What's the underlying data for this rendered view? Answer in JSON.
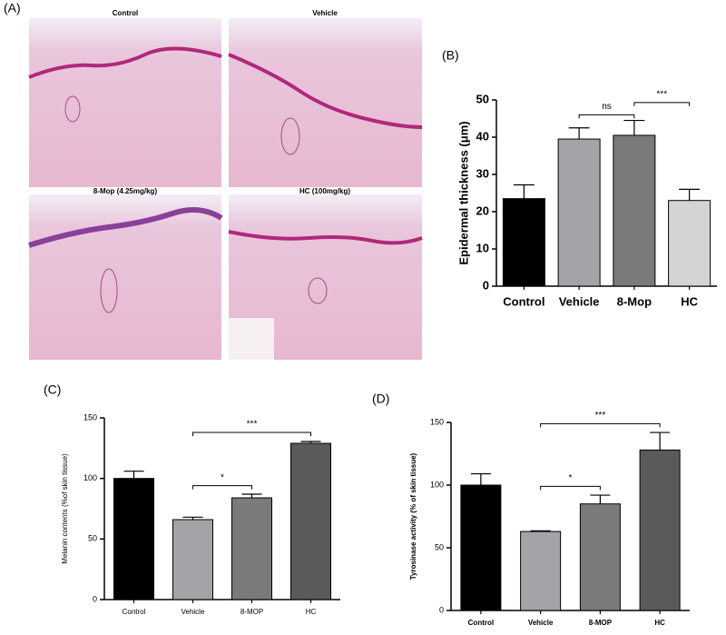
{
  "panel_a": {
    "label": "(A)",
    "images": [
      "Control",
      "Vehicle",
      "8-Mop (4.25mg/kg)",
      "HC (100mg/kg)"
    ]
  },
  "chart_data": [
    {
      "type": "bar",
      "panel_label": "(B)",
      "ylabel": "Epidermal thickness (μm)",
      "categories": [
        "Control",
        "Vehicle",
        "8-Mop",
        "HC"
      ],
      "values": [
        23.5,
        39.5,
        40.5,
        23
      ],
      "errors": [
        3.7,
        3,
        4,
        3
      ],
      "colors": [
        "#000000",
        "#a3a3a8",
        "#7a7a7a",
        "#d4d4d4"
      ],
      "ylim": [
        0,
        50
      ],
      "yticks": [
        0,
        10,
        20,
        30,
        40,
        50
      ],
      "annotations": [
        {
          "text": "ns",
          "between": [
            "Vehicle",
            "8-Mop"
          ],
          "y": 46
        },
        {
          "text": "***",
          "between": [
            "8-Mop",
            "HC"
          ],
          "y": 49.3
        }
      ]
    },
    {
      "type": "bar",
      "panel_label": "(C)",
      "ylabel": "Melanin contents (%of skin tissue)",
      "categories": [
        "Control",
        "Vehicle",
        "8-MOP",
        "HC"
      ],
      "values": [
        100,
        66,
        84,
        129
      ],
      "errors": [
        6,
        2,
        3,
        1.5
      ],
      "colors": [
        "#000000",
        "#a3a3a8",
        "#7a7a7a",
        "#5a5a5a"
      ],
      "ylim": [
        0,
        150
      ],
      "yticks": [
        0,
        50,
        100,
        150
      ],
      "annotations": [
        {
          "text": "*",
          "between": [
            "Vehicle",
            "8-MOP"
          ],
          "y": 94
        },
        {
          "text": "***",
          "between": [
            "Vehicle",
            "HC"
          ],
          "y": 138
        }
      ]
    },
    {
      "type": "bar",
      "panel_label": "(D)",
      "ylabel": "Tyrosinase activity (% of skin tissue)",
      "categories": [
        "Control",
        "Vehicle",
        "8-MOP",
        "HC"
      ],
      "values": [
        100,
        63,
        85,
        128
      ],
      "errors": [
        9,
        0.5,
        7,
        14
      ],
      "colors": [
        "#000000",
        "#a3a3a8",
        "#7a7a7a",
        "#5a5a5a"
      ],
      "ylim": [
        0,
        150
      ],
      "yticks": [
        0,
        50,
        100,
        150
      ],
      "annotations": [
        {
          "text": "*",
          "between": [
            "Vehicle",
            "8-MOP"
          ],
          "y": 99
        },
        {
          "text": "***",
          "between": [
            "Vehicle",
            "HC"
          ],
          "y": 149
        }
      ]
    }
  ]
}
